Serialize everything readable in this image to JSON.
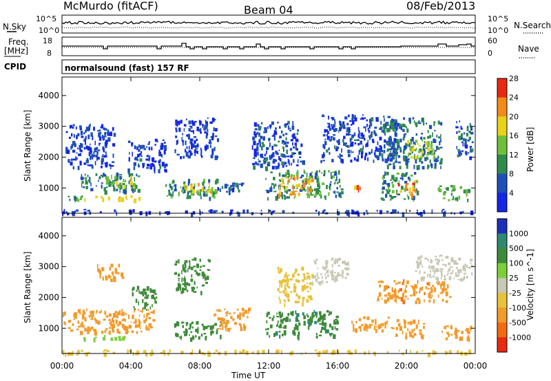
{
  "header": {
    "station": "McMurdo (fitACF)",
    "beam": "Beam 04",
    "date": "08/Feb/2013"
  },
  "top_panels": {
    "nsky_label": "N.Sky",
    "nsearch_label": "N.Search",
    "noise_ticks": [
      "10^5",
      "10^0"
    ],
    "freq_label_1": "Freq.",
    "freq_label_2": "[MHz]",
    "freq_ticks": [
      "18",
      "8"
    ],
    "nave_label": "Nave",
    "nave_ticks": [
      "60",
      "0"
    ],
    "cpid_label": "CPID",
    "cpid_value": "normalsound (fast) 157 RF"
  },
  "chart_data": [
    {
      "type": "heatmap",
      "title": "Power",
      "ylabel": "Slant Range [km]",
      "colorbar_label": "Power [dB]",
      "colorbar_ticks": [
        "4",
        "8",
        "12",
        "16",
        "20",
        "24",
        "28"
      ],
      "colorbar_colors": [
        "#1426e6",
        "#1f4fb8",
        "#2f8a4e",
        "#6fbf3a",
        "#e8d21a",
        "#f28a1a",
        "#e82a12"
      ],
      "yticks": [
        1000,
        2000,
        3000,
        4000
      ],
      "ylim": [
        180,
        4600
      ],
      "xlim_hours": [
        0,
        24
      ],
      "regions": [
        {
          "t0": 0.0,
          "t1": 24.0,
          "r0": 200,
          "r1": 320,
          "v": 5
        },
        {
          "t0": 0.1,
          "t1": 1.2,
          "r0": 650,
          "r1": 900,
          "v": 12
        },
        {
          "t0": 1.2,
          "t1": 4.5,
          "r0": 650,
          "r1": 780,
          "v": 22
        },
        {
          "t0": 1.0,
          "t1": 4.5,
          "r0": 900,
          "r1": 1500,
          "v": 10
        },
        {
          "t0": 2.5,
          "t1": 4.2,
          "r0": 1050,
          "r1": 1450,
          "v": 16
        },
        {
          "t0": 3.8,
          "t1": 6.0,
          "r0": 1600,
          "r1": 2600,
          "v": 7
        },
        {
          "t0": 0.2,
          "t1": 3.0,
          "r0": 1700,
          "r1": 3100,
          "v": 6
        },
        {
          "t0": 6.0,
          "t1": 9.2,
          "r0": 700,
          "r1": 1300,
          "v": 12
        },
        {
          "t0": 7.0,
          "t1": 8.6,
          "r0": 850,
          "r1": 1200,
          "v": 20
        },
        {
          "t0": 6.5,
          "t1": 9.0,
          "r0": 2000,
          "r1": 3300,
          "v": 6
        },
        {
          "t0": 9.0,
          "t1": 10.5,
          "r0": 900,
          "r1": 1300,
          "v": 8
        },
        {
          "t0": 11.8,
          "t1": 16.2,
          "r0": 700,
          "r1": 1600,
          "v": 12
        },
        {
          "t0": 12.5,
          "t1": 14.5,
          "r0": 800,
          "r1": 1400,
          "v": 22
        },
        {
          "t0": 11.0,
          "t1": 14.0,
          "r0": 1700,
          "r1": 3200,
          "v": 7
        },
        {
          "t0": 15.0,
          "t1": 19.5,
          "r0": 1900,
          "r1": 3400,
          "v": 7
        },
        {
          "t0": 16.8,
          "t1": 17.3,
          "r0": 950,
          "r1": 1150,
          "v": 24
        },
        {
          "t0": 18.5,
          "t1": 20.6,
          "r0": 650,
          "r1": 1550,
          "v": 12
        },
        {
          "t0": 19.4,
          "t1": 20.5,
          "r0": 750,
          "r1": 1250,
          "v": 24
        },
        {
          "t0": 18.8,
          "t1": 22.0,
          "r0": 1700,
          "r1": 3300,
          "v": 10
        },
        {
          "t0": 20.0,
          "t1": 21.6,
          "r0": 2000,
          "r1": 2600,
          "v": 18
        },
        {
          "t0": 21.8,
          "t1": 23.6,
          "r0": 600,
          "r1": 1100,
          "v": 14
        },
        {
          "t0": 22.8,
          "t1": 23.8,
          "r0": 2000,
          "r1": 3300,
          "v": 8
        }
      ]
    },
    {
      "type": "heatmap",
      "title": "Velocity",
      "ylabel": "Slant Range [km]",
      "colorbar_label": "Velocity [m s^-1]",
      "colorbar_ticks": [
        "1000",
        "500",
        "100",
        "25",
        "-25",
        "-100",
        "-500",
        "-1000"
      ],
      "colorbar_colors": [
        "#1c2fb8",
        "#2e8a6f",
        "#3f8a3a",
        "#7dcf3a",
        "#c8c8b4",
        "#e8c23a",
        "#f29a2a",
        "#f26a14",
        "#e82a12"
      ],
      "yticks": [
        1000,
        2000,
        3000,
        4000
      ],
      "ylim": [
        180,
        4600
      ],
      "xlim_hours": [
        0,
        24
      ],
      "regions": [
        {
          "t0": 0.0,
          "t1": 24.0,
          "r0": 200,
          "r1": 320,
          "v": -60
        },
        {
          "t0": 0.0,
          "t1": 5.3,
          "r0": 900,
          "r1": 1650,
          "v": -300
        },
        {
          "t0": 1.2,
          "t1": 3.8,
          "r0": 650,
          "r1": 780,
          "v": 60
        },
        {
          "t0": 4.0,
          "t1": 5.5,
          "r0": 1600,
          "r1": 2400,
          "v": 300
        },
        {
          "t0": 2.0,
          "t1": 3.5,
          "r0": 2600,
          "r1": 3100,
          "v": -200
        },
        {
          "t0": 6.5,
          "t1": 9.2,
          "r0": 700,
          "r1": 1250,
          "v": 300
        },
        {
          "t0": 8.8,
          "t1": 10.8,
          "r0": 1000,
          "r1": 1700,
          "v": -300
        },
        {
          "t0": 6.5,
          "t1": 8.5,
          "r0": 2200,
          "r1": 3300,
          "v": 150
        },
        {
          "t0": 11.8,
          "t1": 16.0,
          "r0": 750,
          "r1": 1600,
          "v": 400
        },
        {
          "t0": 12.5,
          "t1": 14.5,
          "r0": 1800,
          "r1": 3000,
          "v": -50
        },
        {
          "t0": 14.5,
          "t1": 16.6,
          "r0": 2500,
          "r1": 3300,
          "v": 0
        },
        {
          "t0": 16.8,
          "t1": 19.2,
          "r0": 950,
          "r1": 1400,
          "v": -300
        },
        {
          "t0": 18.2,
          "t1": 22.5,
          "r0": 1900,
          "r1": 2600,
          "v": -400
        },
        {
          "t0": 19.3,
          "t1": 21.0,
          "r0": 750,
          "r1": 1300,
          "v": -300
        },
        {
          "t0": 20.5,
          "t1": 23.8,
          "r0": 2600,
          "r1": 3400,
          "v": 0
        },
        {
          "t0": 22.0,
          "t1": 23.8,
          "r0": 700,
          "r1": 1100,
          "v": -300
        }
      ]
    }
  ],
  "xaxis": {
    "ticks": [
      "00:00",
      "04:00",
      "08:00",
      "12:00",
      "16:00",
      "20:00",
      "00:00"
    ],
    "label": "Time UT"
  }
}
